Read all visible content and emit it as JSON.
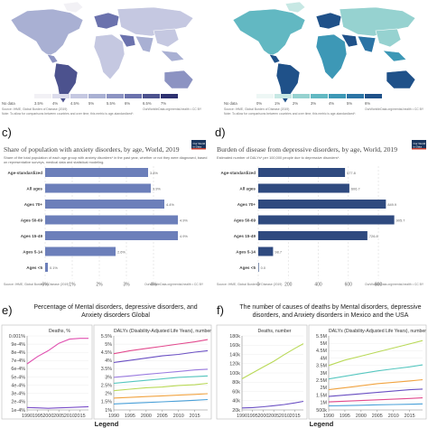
{
  "colors": {
    "map_a": [
      "#f2f1f5",
      "#dcdcec",
      "#c5c8e1",
      "#a9b0d3",
      "#8c93c2",
      "#6b72ad",
      "#4c528e",
      "#2d3170"
    ],
    "map_b": [
      "#eef7f5",
      "#c7e8e4",
      "#96d2d0",
      "#62b8c2",
      "#3d98b6",
      "#2b74a5",
      "#1f5189",
      "#173363"
    ],
    "bar_c": "#6c7fba",
    "bar_d": "#2f4a7f",
    "ow_logo": "#1b365d",
    "ow_logo_red": "#c0392b",
    "line_pink": "#e050b0",
    "line_purple": "#7b4fc9"
  },
  "map_a": {
    "legend": [
      "No data",
      "3.5%",
      "4%",
      "4.5%",
      "5%",
      "5.5%",
      "6%",
      "6.5%",
      "7%"
    ],
    "source": "Source: IHME, Global Burden of Disease (2019)",
    "note": "Note: To allow for comparisons between countries and over time, this metric is age-standardized*.",
    "link": "OurWorldInData.org/mental-health • CC BY"
  },
  "map_b": {
    "legend": [
      "No data",
      "0%",
      "1%",
      "2%",
      "3%",
      "4%",
      "5%",
      "6%"
    ],
    "source": "Source: IHME, Global Burden of Disease (2019)",
    "note": "Note: To allow for comparisons between countries and over time, this metric is age-standardized*.",
    "link": "OurWorldInData.org/mental-health • CC BY"
  },
  "panel_c": {
    "letter": "c)",
    "logo": "Our World in Data",
    "source": "Source: IHME, Global Burden of Disease (2019)",
    "link": "OurWorldInData.org/mental-health • CC BY"
  },
  "panel_d": {
    "letter": "d)",
    "logo": "Our World in Data",
    "source": "Source: IHME, Global Burden of Disease (2019)",
    "link": "OurWorldInData.org/mental-health • CC BY"
  },
  "panel_e": {
    "letter": "e)",
    "title_lines": [
      "Percentage of Mental disorders, depressive disorders, and",
      "Anxiety disorders Global"
    ],
    "legend": "Legend"
  },
  "panel_f": {
    "letter": "f)",
    "title_lines": [
      "The number of causes of deaths by Mental disorders, depressive",
      "disorders, and Anxiety disorders in Mexico and the USA"
    ],
    "legend": "Legend"
  },
  "chart_data": [
    {
      "type": "bar",
      "orientation": "horizontal",
      "title": "Share of population with anxiety disorders, by age, World, 2019",
      "subtitle_lines": [
        "Share of the total population of each age group with anxiety disorders* in the past year, whether or not they were diagnosed, based",
        "on representative surveys, medical data and statistical modeling."
      ],
      "categories": [
        "Age-standardized",
        "All ages",
        "Ages 70+",
        "Ages 50-69",
        "Ages 15-49",
        "Ages 5-14",
        "Ages <5"
      ],
      "values": [
        3.8,
        3.9,
        4.4,
        4.9,
        4.9,
        2.6,
        0.1
      ],
      "value_labels": [
        "3.8%",
        "3.9%",
        "4.4%",
        "4.9%",
        "4.9%",
        "2.6%",
        "0.1%"
      ],
      "ticks": [
        "0%",
        "1%",
        "2%",
        "3%",
        "4%"
      ],
      "xlim": [
        0,
        5
      ]
    },
    {
      "type": "bar",
      "orientation": "horizontal",
      "title": "Burden of disease from depressive disorders, by age, World, 2019",
      "subtitle_lines": [
        "Estimated number of DALYs* per 100,000 people due to depressive disorders*."
      ],
      "categories": [
        "Age-standardized",
        "All ages",
        "Ages 70+",
        "Ages 50-69",
        "Ages 15-49",
        "Ages 5-14",
        "Ages <5"
      ],
      "values": [
        577.8,
        606.7,
        849.9,
        905.7,
        726.8,
        98.7,
        0
      ],
      "value_labels": [
        "577.8",
        "606.7",
        "849.9",
        "905.7",
        "726.8",
        "98.7",
        "0.0"
      ],
      "ticks": [
        "0",
        "200",
        "400",
        "600",
        "800"
      ],
      "xlim": [
        0,
        950
      ]
    },
    {
      "type": "line",
      "title": "Deaths, %",
      "x": [
        1990,
        1995,
        2000,
        2005,
        2010,
        2015,
        2019
      ],
      "x_ticks": [
        "1990",
        "1995",
        "2000",
        "2005",
        "2010",
        "2015"
      ],
      "y_ticks": [
        "0.001%",
        "9e-4%",
        "8e-4%",
        "7e-4%",
        "6e-4%",
        "5e-4%",
        "4e-4%",
        "3e-4%",
        "2e-4%",
        "1e-4%"
      ],
      "ylim": [
        0.0001,
        0.001
      ],
      "series": [
        {
          "values": [
            0.00066,
            0.00075,
            0.00082,
            0.00091,
            0.00096,
            0.00097,
            0.00097
          ],
          "color": "line_pink"
        },
        {
          "values": [
            0.00013,
            0.000125,
            0.00012,
            0.000125,
            0.00013,
            0.000135,
            0.00014
          ],
          "color": "line_purple"
        }
      ]
    },
    {
      "type": "line",
      "title": "DALYs (Disability-Adjusted Life Years), number",
      "x": [
        1990,
        1995,
        2000,
        2005,
        2010,
        2015,
        2019
      ],
      "x_ticks": [
        "1990",
        "1995",
        "2000",
        "2005",
        "2010",
        "2015"
      ],
      "y_ticks": [
        "5.5%",
        "5%",
        "4.5%",
        "4%",
        "3.5%",
        "3%",
        "2.5%",
        "2%",
        "1.5%",
        "1%"
      ],
      "ylim": [
        0.8,
        5.8
      ],
      "series": [
        {
          "values": [
            4.6,
            4.8,
            4.95,
            5.1,
            5.25,
            5.4,
            5.55
          ],
          "color": "#e24a8e"
        },
        {
          "values": [
            4.0,
            4.15,
            4.3,
            4.45,
            4.55,
            4.7,
            4.8
          ],
          "color": "#6a4fc3"
        },
        {
          "values": [
            3.0,
            3.1,
            3.2,
            3.3,
            3.4,
            3.5,
            3.55
          ],
          "color": "#9a7be0"
        },
        {
          "values": [
            2.6,
            2.7,
            2.8,
            2.9,
            3.0,
            3.05,
            3.1
          ],
          "color": "#57c7c0"
        },
        {
          "values": [
            2.1,
            2.2,
            2.3,
            2.35,
            2.45,
            2.5,
            2.6
          ],
          "color": "#b9d957"
        },
        {
          "values": [
            1.6,
            1.65,
            1.7,
            1.75,
            1.8,
            1.85,
            1.9
          ],
          "color": "#f1a340"
        },
        {
          "values": [
            1.2,
            1.25,
            1.3,
            1.35,
            1.4,
            1.45,
            1.5
          ],
          "color": "#4aa0d8"
        }
      ]
    },
    {
      "type": "line",
      "title": "Deaths, number",
      "x": [
        1990,
        1995,
        2000,
        2005,
        2010,
        2015,
        2019
      ],
      "x_ticks": [
        "1990",
        "1995",
        "2000",
        "2005",
        "2010",
        "2015"
      ],
      "y_ticks": [
        "180k",
        "160k",
        "140k",
        "120k",
        "100k",
        "80k",
        "60k",
        "40k",
        "20k"
      ],
      "ylim": [
        0,
        190000
      ],
      "series": [
        {
          "values": [
            80000,
            95000,
            110000,
            125000,
            142000,
            158000,
            170000
          ],
          "color": "#b9d957"
        },
        {
          "values": [
            5000,
            6000,
            8000,
            11000,
            14000,
            18000,
            22000
          ],
          "color": "#6a4fc3"
        }
      ]
    },
    {
      "type": "line",
      "title": "DALYs (Disability-Adjusted Life Years), number",
      "x": [
        1990,
        1995,
        2000,
        2005,
        2010,
        2015,
        2019
      ],
      "x_ticks": [
        "1990",
        "1995",
        "2000",
        "2005",
        "2010",
        "2015"
      ],
      "y_ticks": [
        "5.5M",
        "5M",
        "4.5M",
        "4M",
        "3.5M",
        "3M",
        "2.5M",
        "2M",
        "1.5M",
        "1M",
        "500k"
      ],
      "ylim": [
        300000,
        5800000
      ],
      "series": [
        {
          "values": [
            3600000,
            4000000,
            4300000,
            4600000,
            4900000,
            5200000,
            5450000
          ],
          "color": "#b9d957"
        },
        {
          "values": [
            2600000,
            2800000,
            3000000,
            3200000,
            3350000,
            3500000,
            3650000
          ],
          "color": "#57c7c0"
        },
        {
          "values": [
            1800000,
            1950000,
            2100000,
            2250000,
            2350000,
            2450000,
            2550000
          ],
          "color": "#f1a340"
        },
        {
          "values": [
            1300000,
            1400000,
            1500000,
            1600000,
            1700000,
            1800000,
            1850000
          ],
          "color": "#6a4fc3"
        },
        {
          "values": [
            900000,
            950000,
            1000000,
            1050000,
            1100000,
            1150000,
            1200000
          ],
          "color": "#e24a8e"
        },
        {
          "values": [
            600000,
            620000,
            650000,
            680000,
            700000,
            720000,
            750000
          ],
          "color": "#4aa0d8"
        }
      ]
    }
  ]
}
